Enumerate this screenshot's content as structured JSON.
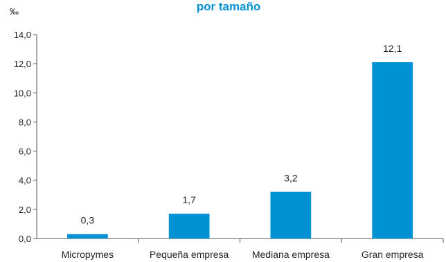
{
  "chart_data": {
    "type": "bar",
    "title": "por tamaño",
    "ylabel": "‰",
    "xlabel": "",
    "categories": [
      "Micropymes",
      "Pequeña empresa",
      "Mediana empresa",
      "Gran empresa"
    ],
    "values": [
      0.3,
      1.7,
      3.2,
      12.1
    ],
    "value_labels": [
      "0,3",
      "1,7",
      "3,2",
      "12,1"
    ],
    "ylim": [
      0,
      14
    ],
    "yticks": [
      0,
      2,
      4,
      6,
      8,
      10,
      12,
      14
    ],
    "ytick_labels": [
      "0,0",
      "2,0",
      "4,0",
      "6,0",
      "8,0",
      "10,0",
      "12,0",
      "14,0"
    ],
    "grid": false,
    "legend": "none",
    "colors": {
      "bar": "#0090d4",
      "title": "#0090d4",
      "axis": "#555555"
    }
  }
}
